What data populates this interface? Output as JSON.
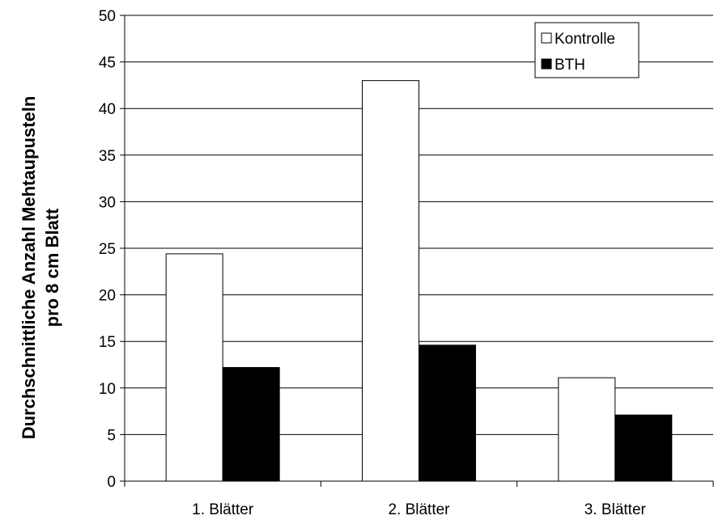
{
  "chart_data": {
    "type": "bar",
    "title": "",
    "xlabel": "",
    "ylabel_lines": [
      "Durchschnittliche Anzahl Mehtaupusteln",
      "pro 8 cm Blatt"
    ],
    "categories": [
      "1. Blätter",
      "2. Blätter",
      "3. Blätter"
    ],
    "series": [
      {
        "name": "Kontrolle",
        "color": "#ffffff",
        "values": [
          24.4,
          43.0,
          11.1
        ]
      },
      {
        "name": "BTH",
        "color": "#000000",
        "values": [
          12.2,
          14.6,
          7.1
        ]
      }
    ],
    "ylim": [
      0,
      50
    ],
    "yticks": [
      "0",
      "5",
      "10",
      "15",
      "20",
      "25",
      "30",
      "35",
      "40",
      "45",
      "50"
    ],
    "grid": true,
    "legend_position": "top-right"
  }
}
